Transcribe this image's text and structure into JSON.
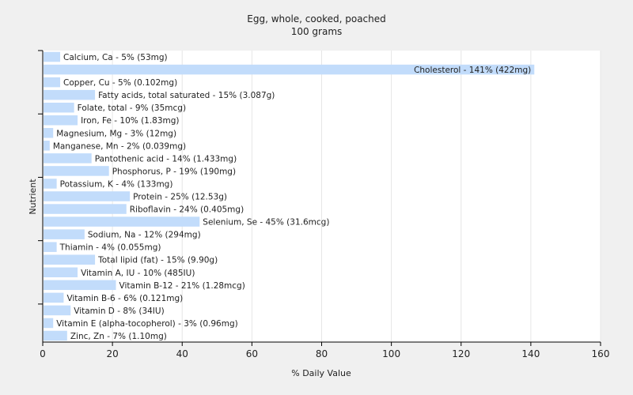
{
  "chart_data": {
    "type": "bar",
    "orientation": "horizontal",
    "title": "Egg, whole, cooked, poached",
    "subtitle": "100 grams",
    "xlabel": "% Daily Value",
    "ylabel": "Nutrient",
    "xlim": [
      0,
      160
    ],
    "xticks": [
      0,
      20,
      40,
      60,
      80,
      100,
      120,
      140,
      160
    ],
    "grid": true,
    "bar_color": "#c2dcfb",
    "categories": [
      "Calcium, Ca - 5% (53mg)",
      "Cholesterol - 141% (422mg)",
      "Copper, Cu - 5% (0.102mg)",
      "Fatty acids, total saturated - 15% (3.087g)",
      "Folate, total - 9% (35mcg)",
      "Iron, Fe - 10% (1.83mg)",
      "Magnesium, Mg - 3% (12mg)",
      "Manganese, Mn - 2% (0.039mg)",
      "Pantothenic acid - 14% (1.433mg)",
      "Phosphorus, P - 19% (190mg)",
      "Potassium, K - 4% (133mg)",
      "Protein - 25% (12.53g)",
      "Riboflavin - 24% (0.405mg)",
      "Selenium, Se - 45% (31.6mcg)",
      "Sodium, Na - 12% (294mg)",
      "Thiamin - 4% (0.055mg)",
      "Total lipid (fat) - 15% (9.90g)",
      "Vitamin A, IU - 10% (485IU)",
      "Vitamin B-12 - 21% (1.28mcg)",
      "Vitamin B-6 - 6% (0.121mg)",
      "Vitamin D - 8% (34IU)",
      "Vitamin E (alpha-tocopherol) - 3% (0.96mg)",
      "Zinc, Zn - 7% (1.10mg)"
    ],
    "values": [
      5,
      141,
      5,
      15,
      9,
      10,
      3,
      2,
      14,
      19,
      4,
      25,
      24,
      45,
      12,
      4,
      15,
      10,
      21,
      6,
      8,
      3,
      7
    ]
  }
}
